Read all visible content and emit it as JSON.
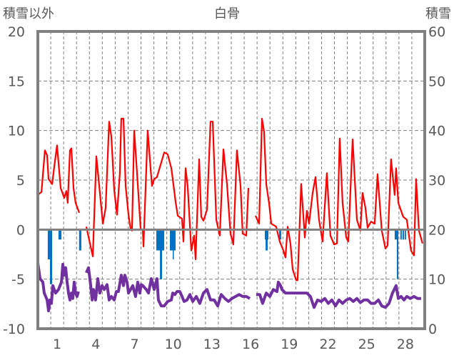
{
  "chart_data": {
    "type": "line",
    "title": "白骨",
    "ylabel_left": "積雪以外",
    "ylabel_right": "積雪",
    "ylim_left": [
      -10,
      20
    ],
    "ylim_right": [
      0,
      60
    ],
    "yticks_left": [
      "20",
      "15",
      "10",
      "5",
      "0",
      "-5",
      "-10"
    ],
    "yticks_right": [
      "60",
      "50",
      "40",
      "30",
      "20",
      "10",
      "0"
    ],
    "xlim_days": [
      0,
      30
    ],
    "xticks": [
      {
        "day": 1,
        "label": "1"
      },
      {
        "day": 4,
        "label": "4"
      },
      {
        "day": 7,
        "label": "7"
      },
      {
        "day": 10,
        "label": "10"
      },
      {
        "day": 13,
        "label": "13"
      },
      {
        "day": 16,
        "label": "16"
      },
      {
        "day": 19,
        "label": "19"
      },
      {
        "day": 22,
        "label": "22"
      },
      {
        "day": 25,
        "label": "25"
      },
      {
        "day": 28,
        "label": "28"
      }
    ],
    "grid": "dashed, daily vertical + every 5 horizontal",
    "colors": {
      "temperature": "#ff0000",
      "precipitation": "#0070c0",
      "snow": "#7030a0",
      "frame": "#808080"
    },
    "series": [
      {
        "name": "temperature",
        "axis": "left",
        "points": [
          [
            0,
            3.5
          ],
          [
            0.28,
            3.8
          ],
          [
            0.55,
            8.0
          ],
          [
            0.72,
            7.5
          ],
          [
            0.83,
            5.1
          ],
          [
            1.11,
            4.6
          ],
          [
            1.27,
            6.3
          ],
          [
            1.49,
            8.5
          ],
          [
            1.77,
            4.2
          ],
          [
            2.05,
            3.2
          ],
          [
            2.21,
            3.9
          ],
          [
            2.32,
            2.7
          ],
          [
            2.49,
            8.0
          ],
          [
            2.6,
            8.2
          ],
          [
            2.77,
            4.2
          ],
          [
            2.93,
            2.7
          ],
          [
            3.21,
            1.7
          ],
          null,
          [
            3.76,
            0.3
          ],
          [
            4.26,
            -2.7
          ],
          [
            4.54,
            7.4
          ],
          [
            5.04,
            0.6
          ],
          [
            5.26,
            2.2
          ],
          [
            5.53,
            10.9
          ],
          [
            5.7,
            9.4
          ],
          [
            5.92,
            4.0
          ],
          [
            6.14,
            1.5
          ],
          [
            6.36,
            5.7
          ],
          [
            6.47,
            11.2
          ],
          [
            6.64,
            11.2
          ],
          [
            6.81,
            4.4
          ],
          [
            7.03,
            1.5
          ],
          [
            7.19,
            0.1
          ],
          [
            7.3,
            -0.1
          ],
          [
            7.47,
            10.0
          ],
          [
            7.69,
            5.8
          ],
          [
            7.97,
            0.1
          ],
          [
            8.14,
            -0.1
          ],
          [
            8.19,
            -1.7
          ],
          [
            8.52,
            10.0
          ],
          [
            8.85,
            4.4
          ],
          [
            9.02,
            5.1
          ],
          [
            9.24,
            5.3
          ],
          [
            9.8,
            7.8
          ],
          [
            10.07,
            7.6
          ],
          [
            10.35,
            6.2
          ],
          [
            10.46,
            5.1
          ],
          [
            10.68,
            2.8
          ],
          [
            10.85,
            1.4
          ],
          [
            11.18,
            1.1
          ],
          [
            11.29,
            -1.2
          ],
          [
            11.46,
            6.2
          ],
          [
            11.62,
            4.4
          ],
          [
            11.9,
            -2.1
          ],
          [
            12.12,
            -0.6
          ],
          [
            12.23,
            -3.0
          ],
          [
            12.51,
            7.1
          ],
          [
            12.67,
            1.3
          ],
          [
            12.84,
            0.9
          ],
          [
            13.12,
            2.0
          ],
          [
            13.39,
            10.9
          ],
          [
            13.56,
            10.9
          ],
          [
            13.84,
            1.0
          ],
          [
            14.11,
            -0.6
          ],
          [
            14.39,
            8.1
          ],
          [
            14.67,
            4.6
          ],
          [
            14.94,
            -0.4
          ],
          [
            15.16,
            -1.5
          ],
          [
            15.44,
            8.0
          ],
          [
            15.72,
            4.4
          ],
          [
            15.88,
            -0.4
          ],
          [
            16.16,
            -0.6
          ],
          [
            16.33,
            4.2
          ],
          null,
          [
            16.88,
            1.4
          ],
          [
            17.16,
            0.6
          ],
          [
            17.38,
            11.2
          ],
          [
            17.54,
            9.9
          ],
          [
            17.71,
            4.6
          ],
          [
            17.93,
            2.7
          ],
          [
            18.1,
            0.6
          ],
          [
            18.48,
            0.3
          ],
          [
            18.76,
            -1.2
          ],
          [
            19.04,
            -2.1
          ],
          [
            19.2,
            -2.8
          ],
          [
            19.37,
            0.3
          ],
          [
            19.59,
            -1.4
          ],
          [
            19.76,
            -4.0
          ],
          [
            20.03,
            -5.1
          ],
          [
            20.14,
            -5.1
          ],
          [
            20.42,
            4.6
          ],
          [
            20.7,
            -0.8
          ],
          [
            20.86,
            1.9
          ],
          [
            21.03,
            0.6
          ],
          [
            21.31,
            3.7
          ],
          [
            21.53,
            5.3
          ],
          [
            21.8,
            1.0
          ],
          [
            22.08,
            -1.2
          ],
          [
            22.41,
            5.7
          ],
          [
            22.69,
            -0.6
          ],
          [
            22.97,
            -1.5
          ],
          [
            23.19,
            -1.4
          ],
          [
            23.41,
            9.2
          ],
          [
            23.63,
            2.7
          ],
          [
            23.91,
            -0.8
          ],
          [
            24.07,
            -1.2
          ],
          [
            24.41,
            9.1
          ],
          [
            24.74,
            1.0
          ],
          [
            25.01,
            -0.1
          ],
          [
            25.18,
            3.7
          ],
          [
            25.4,
            2.2
          ],
          [
            25.57,
            0.2
          ],
          [
            25.84,
            0.8
          ],
          [
            26.12,
            0.6
          ],
          [
            26.34,
            5.6
          ],
          [
            26.67,
            -0.1
          ],
          [
            26.95,
            -1.9
          ],
          [
            27.12,
            -1.6
          ],
          [
            27.39,
            7.1
          ],
          [
            27.67,
            3.5
          ],
          [
            27.78,
            6.2
          ],
          [
            27.95,
            2.7
          ],
          [
            28.33,
            1.3
          ],
          [
            28.61,
            1.0
          ],
          [
            28.94,
            -2.1
          ],
          [
            29.17,
            -2.6
          ],
          [
            29.33,
            5.1
          ],
          [
            29.55,
            -0.1
          ],
          [
            29.83,
            -1.4
          ]
        ]
      },
      {
        "name": "snow",
        "axis": "right",
        "points": [
          [
            0,
            13.3
          ],
          [
            0.17,
            10.1
          ],
          [
            0.39,
            9.4
          ],
          [
            0.5,
            7.2
          ],
          [
            0.72,
            5.8
          ],
          [
            0.83,
            3.6
          ],
          [
            0.94,
            5.8
          ],
          [
            1.05,
            5.1
          ],
          [
            1.16,
            8.7
          ],
          [
            1.27,
            7.9
          ],
          [
            1.38,
            7.2
          ],
          [
            1.6,
            7.9
          ],
          [
            1.83,
            9.4
          ],
          [
            1.94,
            13.0
          ],
          [
            2.05,
            10.8
          ],
          [
            2.16,
            12.3
          ],
          [
            2.27,
            9.4
          ],
          [
            2.38,
            7.2
          ],
          [
            2.49,
            5.8
          ],
          [
            2.6,
            7.2
          ],
          [
            2.71,
            6.1
          ],
          [
            2.82,
            9.4
          ],
          [
            2.93,
            7.2
          ],
          [
            3.04,
            6.5
          ],
          [
            3.15,
            7.5
          ],
          null,
          [
            3.76,
            11.3
          ],
          [
            3.93,
            12.3
          ],
          [
            4.1,
            8.7
          ],
          [
            4.21,
            5.8
          ],
          [
            4.32,
            7.9
          ],
          [
            4.48,
            5.8
          ],
          [
            4.65,
            10.1
          ],
          [
            4.81,
            7.2
          ],
          [
            4.98,
            8.7
          ],
          [
            5.15,
            7.9
          ],
          [
            5.37,
            8.9
          ],
          [
            5.53,
            5.8
          ],
          [
            5.7,
            6.5
          ],
          [
            5.92,
            5.8
          ],
          [
            6.09,
            7.5
          ],
          [
            6.25,
            7.5
          ],
          [
            6.47,
            10.8
          ],
          [
            6.64,
            8.7
          ],
          [
            6.75,
            10.8
          ],
          [
            6.92,
            9.4
          ],
          [
            7.03,
            7.2
          ],
          [
            7.19,
            7.9
          ],
          [
            7.36,
            8.7
          ],
          [
            7.58,
            6.5
          ],
          [
            7.75,
            9.4
          ],
          [
            7.91,
            7.2
          ],
          [
            8.02,
            8.9
          ],
          [
            8.14,
            8.7
          ],
          [
            8.41,
            7.9
          ],
          [
            8.58,
            7.2
          ],
          [
            8.8,
            10.1
          ],
          [
            9.02,
            7.9
          ],
          [
            9.24,
            10.1
          ],
          [
            9.35,
            5.8
          ],
          [
            9.57,
            4.6
          ],
          [
            9.8,
            4.6
          ],
          [
            10.07,
            5.5
          ],
          [
            10.35,
            5.8
          ],
          [
            10.46,
            7.2
          ],
          [
            10.63,
            6.9
          ],
          [
            10.79,
            7.5
          ],
          [
            11.01,
            7.5
          ],
          [
            11.18,
            6.5
          ],
          [
            11.34,
            5.5
          ],
          [
            11.57,
            5.8
          ],
          [
            11.79,
            6.9
          ],
          [
            12.01,
            5.5
          ],
          [
            12.29,
            6.5
          ],
          [
            12.56,
            5.1
          ],
          [
            12.84,
            7.2
          ],
          [
            13.12,
            7.9
          ],
          [
            13.39,
            5.8
          ],
          [
            13.67,
            5.8
          ],
          [
            13.95,
            4.6
          ],
          [
            14.22,
            6.9
          ],
          [
            14.5,
            6.1
          ],
          [
            14.78,
            5.5
          ],
          [
            15.05,
            6.1
          ],
          [
            15.33,
            6.5
          ],
          [
            15.61,
            6.9
          ],
          [
            15.88,
            6.5
          ],
          [
            16.16,
            6.5
          ],
          [
            16.44,
            6.1
          ],
          null,
          [
            16.93,
            6.9
          ],
          [
            17.21,
            6.9
          ],
          [
            17.43,
            5.1
          ],
          [
            17.71,
            7.2
          ],
          [
            17.99,
            6.5
          ],
          [
            18.26,
            7.9
          ],
          [
            18.54,
            7.5
          ],
          [
            18.65,
            9.4
          ],
          [
            18.82,
            8.7
          ],
          [
            18.93,
            7.9
          ],
          [
            19.2,
            7.2
          ],
          [
            19.76,
            7.2
          ],
          [
            20.31,
            7.2
          ],
          [
            20.86,
            7.2
          ],
          [
            21.14,
            6.5
          ],
          [
            21.42,
            4.3
          ],
          [
            21.69,
            5.8
          ],
          [
            21.97,
            5.5
          ],
          [
            22.25,
            6.1
          ],
          [
            22.52,
            5.1
          ],
          [
            22.8,
            5.8
          ],
          [
            23.08,
            4.6
          ],
          [
            23.35,
            5.8
          ],
          [
            23.63,
            5.1
          ],
          [
            23.91,
            5.8
          ],
          [
            24.18,
            6.1
          ],
          [
            24.46,
            5.5
          ],
          [
            24.74,
            6.1
          ],
          [
            25.01,
            5.3
          ],
          [
            25.29,
            5.8
          ],
          [
            25.57,
            5.8
          ],
          [
            25.84,
            5.1
          ],
          [
            26.12,
            5.1
          ],
          [
            26.4,
            5.8
          ],
          [
            26.67,
            4.6
          ],
          [
            26.95,
            4.3
          ],
          [
            27.23,
            5.1
          ],
          [
            27.5,
            7.2
          ],
          [
            27.78,
            8.7
          ],
          [
            27.95,
            6.1
          ],
          [
            28.17,
            6.5
          ],
          [
            28.39,
            5.8
          ],
          [
            28.61,
            6.5
          ],
          [
            28.89,
            6.1
          ],
          [
            29.16,
            6.5
          ],
          [
            29.44,
            6.1
          ],
          [
            29.72,
            6.1
          ]
        ]
      },
      {
        "name": "precipitation",
        "axis": "left",
        "bars": [
          [
            0.77,
            0.94,
            -3.0
          ],
          [
            0.94,
            1.11,
            -5.5
          ],
          [
            1.6,
            1.83,
            -1.0
          ],
          [
            3.2,
            3.37,
            -2.1
          ],
          [
            9.19,
            9.8,
            -2.1
          ],
          [
            9.47,
            9.63,
            -5.0
          ],
          [
            10.24,
            10.68,
            -2.1
          ],
          [
            10.46,
            10.52,
            -3.0
          ],
          [
            17.6,
            17.88,
            -1.0
          ],
          [
            17.66,
            17.82,
            -2.1
          ],
          [
            18.71,
            18.87,
            -1.0
          ],
          [
            27.67,
            27.95,
            -1.0
          ],
          [
            27.84,
            27.95,
            -5.0
          ],
          [
            28.11,
            28.22,
            -1.0
          ],
          [
            28.28,
            28.39,
            -1.0
          ],
          [
            28.44,
            28.55,
            -1.0
          ]
        ]
      }
    ]
  }
}
